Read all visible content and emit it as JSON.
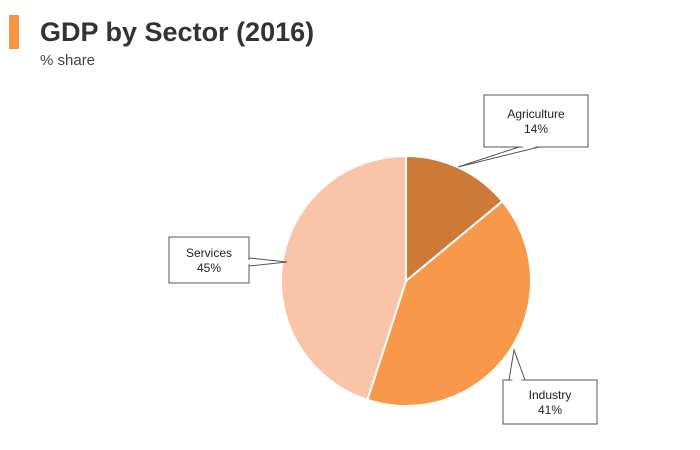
{
  "title": "GDP by Sector (2016)",
  "subtitle": "% share",
  "colors": {
    "accent": "#f7943d",
    "agriculture": "#cd7a38",
    "industry": "#f7984a",
    "services": "#f9c4a8"
  },
  "chart_data": {
    "type": "pie",
    "categories": [
      "Agriculture",
      "Industry",
      "Services"
    ],
    "values": [
      14,
      41,
      45
    ],
    "labels": [
      "14%",
      "41%",
      "45%"
    ],
    "unit": "%",
    "start_angle": "12 o'clock",
    "direction": "clockwise"
  }
}
